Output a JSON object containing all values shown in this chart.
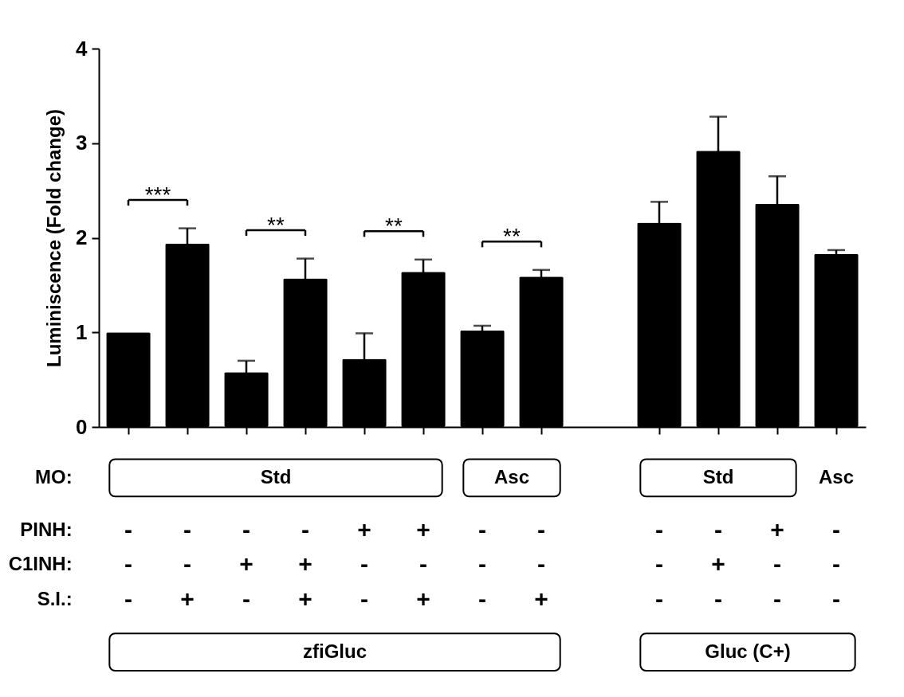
{
  "chart_data": {
    "type": "bar",
    "ylabel": "Luminiscence (Fold change)",
    "categories": [
      null,
      null,
      null,
      null,
      null,
      null,
      null,
      null,
      null,
      null,
      null,
      null,
      null
    ],
    "values": [
      1.0,
      1.94,
      0.58,
      1.57,
      0.72,
      1.64,
      1.02,
      1.59,
      null,
      2.16,
      2.92,
      2.36,
      1.83
    ],
    "errors": [
      null,
      0.16,
      0.12,
      0.21,
      0.27,
      0.13,
      0.05,
      0.07,
      null,
      0.22,
      0.36,
      0.29,
      0.04
    ],
    "color": "#000000",
    "ylim": [
      0,
      4
    ],
    "yticks": [
      0,
      1,
      2,
      3,
      4
    ],
    "annotations": [
      "***",
      "**",
      "**",
      "**",
      "MO:",
      "Std",
      "Asc",
      "Std",
      "Asc",
      "PINH:",
      "-",
      "-",
      "-",
      "-",
      "+",
      "+",
      "-",
      "-",
      "-",
      "-",
      "+",
      "-",
      "C1INH:",
      "-",
      "-",
      "+",
      "+",
      "-",
      "-",
      "-",
      "-",
      "-",
      "+",
      "-",
      "-",
      "S.I.:",
      "-",
      "+",
      "-",
      "+",
      "-",
      "+",
      "-",
      "+",
      "-",
      "-",
      "-",
      "-",
      "zfiGluc",
      "Gluc (C+)"
    ]
  }
}
